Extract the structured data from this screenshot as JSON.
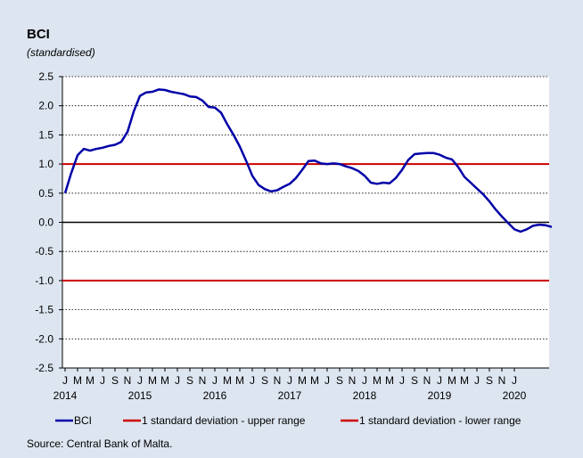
{
  "title": "BCI",
  "subtitle": "(standardised)",
  "source": "Source: Central Bank of Malta.",
  "colors": {
    "bci": "#0000a8",
    "upper": "#cc0000",
    "lower": "#cc0000",
    "zero": "#000000",
    "grid": "#000000",
    "background": "#dde5f0",
    "plot_bg": "#ffffff"
  },
  "chart_data": {
    "type": "line",
    "title": "BCI",
    "subtitle": "(standardised)",
    "xlabel": "",
    "ylabel": "",
    "ylim": [
      -2.5,
      2.5
    ],
    "y_ticks": [
      "2.5",
      "2.0",
      "1.5",
      "1.0",
      "0.5",
      "0.0",
      "-0.5",
      "-1.0",
      "-1.5",
      "-2.0",
      "-2.5"
    ],
    "grid": "horizontal dotted",
    "legend_position": "bottom",
    "x_month_labels": [
      "J",
      "M",
      "M",
      "J",
      "S",
      "N",
      "J",
      "M",
      "M",
      "J",
      "S",
      "N",
      "J",
      "M",
      "M",
      "J",
      "S",
      "N",
      "J",
      "M",
      "M",
      "J",
      "S",
      "N",
      "J",
      "M",
      "M",
      "J",
      "S",
      "N",
      "J",
      "M",
      "M",
      "J",
      "S",
      "N",
      "J"
    ],
    "x_year_labels": [
      {
        "label": "2014",
        "index": 0
      },
      {
        "label": "2015",
        "index": 12
      },
      {
        "label": "2016",
        "index": 24
      },
      {
        "label": "2017",
        "index": 36
      },
      {
        "label": "2018",
        "index": 48
      },
      {
        "label": "2019",
        "index": 60
      },
      {
        "label": "2020",
        "index": 72
      }
    ],
    "series": [
      {
        "name": "BCI",
        "values": [
          0.5,
          0.85,
          1.15,
          1.26,
          1.23,
          1.26,
          1.28,
          1.31,
          1.33,
          1.38,
          1.55,
          1.9,
          2.17,
          2.23,
          2.24,
          2.28,
          2.27,
          2.24,
          2.22,
          2.2,
          2.16,
          2.15,
          2.09,
          1.98,
          1.97,
          1.88,
          1.68,
          1.5,
          1.3,
          1.06,
          0.8,
          0.64,
          0.57,
          0.53,
          0.55,
          0.61,
          0.66,
          0.76,
          0.9,
          1.05,
          1.06,
          1.01,
          1.0,
          1.01,
          1.0,
          0.96,
          0.93,
          0.88,
          0.8,
          0.68,
          0.66,
          0.68,
          0.67,
          0.76,
          0.9,
          1.07,
          1.17,
          1.18,
          1.19,
          1.19,
          1.16,
          1.11,
          1.08,
          0.95,
          0.78,
          0.68,
          0.58,
          0.48,
          0.36,
          0.22,
          0.1,
          -0.01,
          -0.12,
          -0.16,
          -0.12,
          -0.06,
          -0.04,
          -0.05,
          -0.08
        ]
      },
      {
        "name": "1 standard deviation - upper range",
        "constant": 1.0
      },
      {
        "name": "1 standard deviation - lower range",
        "constant": -1.0
      }
    ]
  }
}
